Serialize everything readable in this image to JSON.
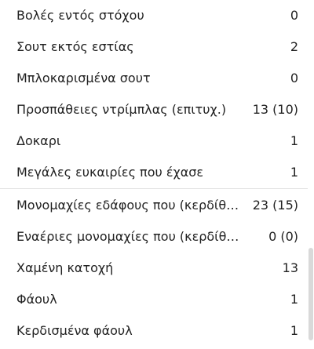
{
  "section_1": {
    "rows": [
      {
        "label": "Βολές εντός στόχου",
        "value": "0"
      },
      {
        "label": "Σουτ εκτός εστίας",
        "value": "2"
      },
      {
        "label": "Μπλοκαρισμένα σουτ",
        "value": "0"
      },
      {
        "label": "Προσπάθειες ντρίμπλας (επιτυχ.)",
        "value": "13 (10)"
      },
      {
        "label": "Δοκαρι",
        "value": "1"
      },
      {
        "label": "Μεγάλες ευκαιρίες που έχασε",
        "value": "1"
      }
    ]
  },
  "section_2": {
    "rows": [
      {
        "label": "Μονομαχίες εδάφους που (κερδίθηκαν)",
        "value": "23 (15)"
      },
      {
        "label": "Εναέριες μονομαχίες που (κερδίθηκαν)",
        "value": "0 (0)"
      },
      {
        "label": "Χαμένη κατοχή",
        "value": "13"
      },
      {
        "label": "Φάουλ",
        "value": "1"
      },
      {
        "label": "Κερδισμένα φάουλ",
        "value": "1"
      }
    ]
  }
}
